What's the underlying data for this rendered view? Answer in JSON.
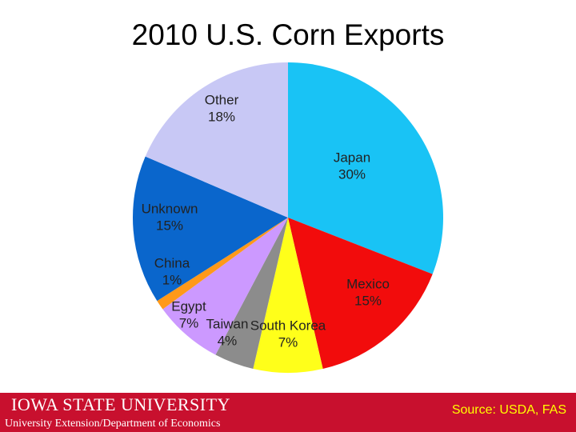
{
  "chart_data": {
    "type": "pie",
    "title": "2010 U.S. Corn Exports",
    "categories": [
      "Japan",
      "Mexico",
      "South Korea",
      "Taiwan",
      "Egypt",
      "China",
      "Unknown",
      "Other"
    ],
    "values": [
      30,
      15,
      7,
      4,
      7,
      1,
      15,
      18
    ],
    "value_labels": [
      "30%",
      "15%",
      "7%",
      "4%",
      "7%",
      "1%",
      "15%",
      "18%"
    ],
    "colors": [
      "#19c3f5",
      "#f20c0c",
      "#ffff1a",
      "#8c8c8c",
      "#cc99ff",
      "#ff9919",
      "#0a66cc",
      "#c8c8f5"
    ]
  },
  "footer": {
    "university": "Iowa State University",
    "department": "University Extension/Department of Economics",
    "source": "Source: USDA, FAS"
  }
}
